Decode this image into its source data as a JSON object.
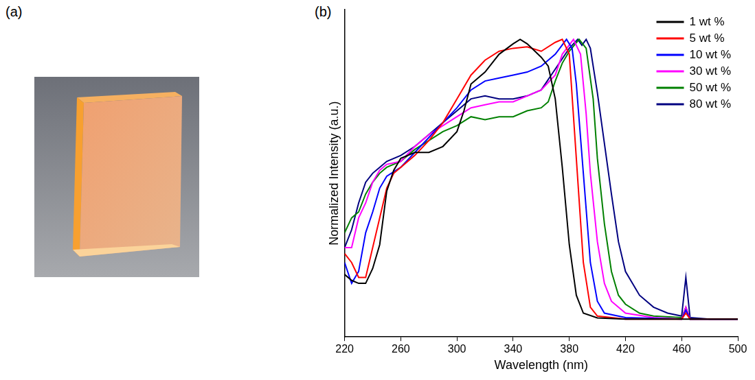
{
  "photo": {
    "panel_label": "(a)"
  },
  "chart_data": {
    "type": "line",
    "panel_label": "(b)",
    "x_label": "Wavelength (nm)",
    "y_label": "Normalized Intensity (a.u.)",
    "xlim": [
      220,
      500
    ],
    "xticks": [
      220,
      260,
      300,
      340,
      380,
      420,
      460,
      500
    ],
    "ylim": [
      0,
      1.1
    ],
    "tick_labels": "x",
    "grid": false,
    "legend": "upper right",
    "series": [
      {
        "name": "1 wt %",
        "color": "#000000",
        "x": [
          220,
          225,
          230,
          235,
          240,
          245,
          250,
          255,
          260,
          270,
          280,
          290,
          300,
          305,
          310,
          320,
          330,
          340,
          345,
          350,
          360,
          365,
          370,
          375,
          380,
          385,
          390,
          400,
          420,
          460,
          500
        ],
        "values": [
          0.21,
          0.19,
          0.18,
          0.18,
          0.23,
          0.31,
          0.49,
          0.56,
          0.6,
          0.62,
          0.62,
          0.64,
          0.69,
          0.76,
          0.85,
          0.89,
          0.95,
          0.985,
          1.0,
          0.985,
          0.94,
          0.91,
          0.8,
          0.57,
          0.31,
          0.14,
          0.08,
          0.064,
          0.06,
          0.06,
          0.06
        ]
      },
      {
        "name": "5 wt %",
        "color": "#ff0000",
        "x": [
          220,
          225,
          230,
          235,
          240,
          245,
          250,
          255,
          260,
          270,
          280,
          290,
          300,
          310,
          320,
          330,
          340,
          350,
          360,
          370,
          375,
          380,
          385,
          390,
          395,
          400,
          420,
          460,
          463,
          466,
          500
        ],
        "values": [
          0.28,
          0.25,
          0.2,
          0.2,
          0.3,
          0.4,
          0.5,
          0.55,
          0.57,
          0.61,
          0.66,
          0.72,
          0.8,
          0.88,
          0.93,
          0.96,
          0.97,
          0.975,
          0.96,
          0.99,
          1.0,
          0.95,
          0.6,
          0.25,
          0.1,
          0.07,
          0.06,
          0.06,
          0.08,
          0.06,
          0.06
        ]
      },
      {
        "name": "10 wt %",
        "color": "#0000ff",
        "x": [
          220,
          225,
          230,
          235,
          240,
          245,
          250,
          260,
          270,
          280,
          290,
          300,
          310,
          320,
          330,
          340,
          350,
          360,
          370,
          378,
          382,
          385,
          390,
          395,
          400,
          405,
          420,
          460,
          463,
          466,
          500
        ],
        "values": [
          0.25,
          0.18,
          0.22,
          0.35,
          0.42,
          0.5,
          0.54,
          0.57,
          0.62,
          0.67,
          0.72,
          0.77,
          0.83,
          0.86,
          0.87,
          0.88,
          0.89,
          0.91,
          0.95,
          1.0,
          0.97,
          0.85,
          0.55,
          0.25,
          0.12,
          0.08,
          0.065,
          0.06,
          0.09,
          0.06,
          0.06
        ]
      },
      {
        "name": "30 wt %",
        "color": "#ff00ff",
        "x": [
          220,
          225,
          230,
          235,
          240,
          245,
          250,
          260,
          270,
          280,
          290,
          300,
          310,
          320,
          330,
          340,
          350,
          360,
          370,
          375,
          383,
          388,
          392,
          395,
          400,
          405,
          410,
          420,
          440,
          460,
          463,
          466,
          500
        ],
        "values": [
          0.3,
          0.3,
          0.4,
          0.45,
          0.52,
          0.56,
          0.58,
          0.59,
          0.64,
          0.68,
          0.71,
          0.74,
          0.77,
          0.78,
          0.79,
          0.79,
          0.81,
          0.83,
          0.88,
          0.95,
          1.0,
          0.95,
          0.75,
          0.55,
          0.32,
          0.18,
          0.12,
          0.08,
          0.065,
          0.06,
          0.1,
          0.06,
          0.06
        ]
      },
      {
        "name": "50 wt %",
        "color": "#008000",
        "x": [
          220,
          225,
          230,
          235,
          240,
          245,
          250,
          260,
          270,
          280,
          290,
          300,
          310,
          320,
          330,
          340,
          350,
          360,
          365,
          370,
          375,
          380,
          387,
          392,
          397,
          400,
          405,
          410,
          415,
          420,
          430,
          440,
          460,
          463,
          466,
          500
        ],
        "values": [
          0.35,
          0.4,
          0.42,
          0.48,
          0.52,
          0.55,
          0.57,
          0.59,
          0.63,
          0.66,
          0.69,
          0.71,
          0.74,
          0.73,
          0.74,
          0.74,
          0.76,
          0.77,
          0.79,
          0.86,
          0.92,
          0.96,
          1.0,
          0.97,
          0.8,
          0.6,
          0.38,
          0.22,
          0.14,
          0.11,
          0.08,
          0.07,
          0.065,
          0.1,
          0.06,
          0.06
        ]
      },
      {
        "name": "80 wt %",
        "color": "#000080",
        "x": [
          220,
          225,
          230,
          235,
          240,
          245,
          250,
          260,
          270,
          280,
          290,
          300,
          310,
          320,
          330,
          340,
          350,
          360,
          370,
          380,
          386,
          389,
          392,
          395,
          400,
          405,
          410,
          415,
          420,
          430,
          440,
          450,
          460,
          463,
          466,
          480,
          500
        ],
        "values": [
          0.3,
          0.36,
          0.45,
          0.52,
          0.55,
          0.57,
          0.59,
          0.61,
          0.64,
          0.68,
          0.72,
          0.76,
          0.8,
          0.81,
          0.8,
          0.8,
          0.81,
          0.83,
          0.9,
          0.97,
          1.0,
          0.98,
          1.0,
          0.97,
          0.82,
          0.65,
          0.48,
          0.32,
          0.22,
          0.14,
          0.1,
          0.08,
          0.07,
          0.2,
          0.065,
          0.06,
          0.06
        ]
      }
    ]
  }
}
